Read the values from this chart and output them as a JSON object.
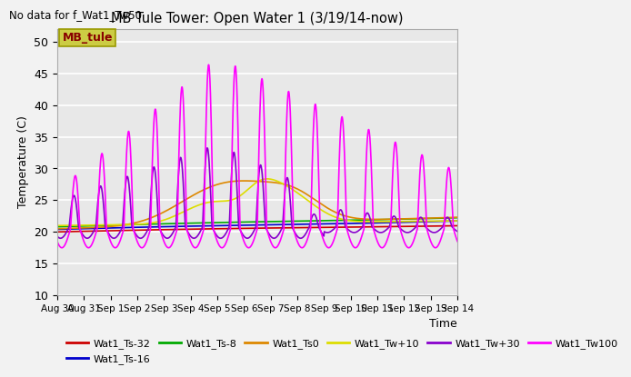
{
  "title": "MB Tule Tower: Open Water 1 (3/19/14-now)",
  "no_data_text": "No data for f_Wat1_Tw50",
  "xlabel": "Time",
  "ylabel": "Temperature (C)",
  "ylim": [
    10,
    52
  ],
  "yticks": [
    10,
    15,
    20,
    25,
    30,
    35,
    40,
    45,
    50
  ],
  "bg_color": "#e8e8e8",
  "legend_box_facecolor": "#cccc44",
  "legend_box_edgecolor": "#999900",
  "legend_box_text": "MB_tule",
  "legend_box_text_color": "#880000",
  "series": [
    {
      "label": "Wat1_Ts-32",
      "color": "#cc0000",
      "lw": 1.2
    },
    {
      "label": "Wat1_Ts-16",
      "color": "#0000cc",
      "lw": 1.2
    },
    {
      "label": "Wat1_Ts-8",
      "color": "#00aa00",
      "lw": 1.2
    },
    {
      "label": "Wat1_Ts0",
      "color": "#dd8800",
      "lw": 1.2
    },
    {
      "label": "Wat1_Tw+10",
      "color": "#dddd00",
      "lw": 1.2
    },
    {
      "label": "Wat1_Tw+30",
      "color": "#8800cc",
      "lw": 1.2
    },
    {
      "label": "Wat1_Tw100",
      "color": "#ff00ff",
      "lw": 1.2
    }
  ],
  "xtick_labels": [
    "Aug 30",
    "Aug 31",
    "Sep 1",
    "Sep 2",
    "Sep 3",
    "Sep 4",
    "Sep 5",
    "Sep 6",
    "Sep 7",
    "Sep 8",
    "Sep 9",
    "Sep 10",
    "Sep 11",
    "Sep 12",
    "Sep 13",
    "Sep 14"
  ],
  "xtick_positions": [
    0,
    1,
    2,
    3,
    4,
    5,
    6,
    7,
    8,
    9,
    10,
    11,
    12,
    13,
    14,
    15
  ],
  "x_start": 0,
  "x_end": 15
}
